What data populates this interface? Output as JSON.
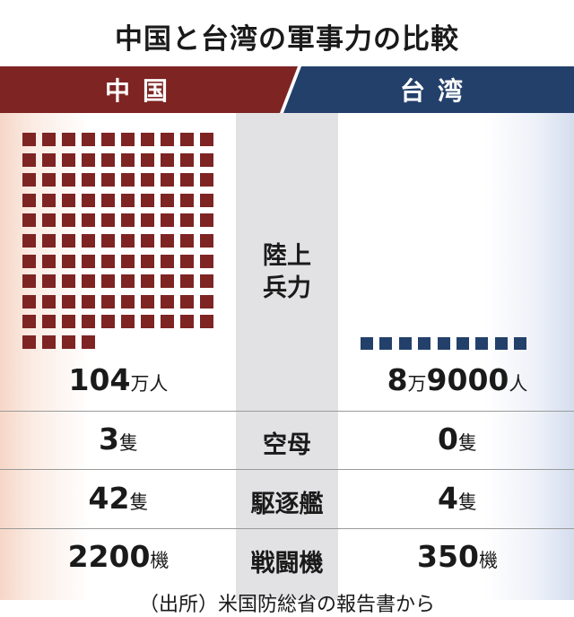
{
  "title": "中国と台湾の軍事力の比較",
  "colors": {
    "china": "#7e2423",
    "taiwan": "#23406b",
    "middle": "#e2e2e4"
  },
  "sides": {
    "china": "中国",
    "taiwan": "台湾"
  },
  "rows": {
    "ground": {
      "label": "陸上\n兵力",
      "china_num": "104",
      "china_unit": "万人",
      "taiwan_num1": "8",
      "taiwan_unit1": "万",
      "taiwan_num2": "9000",
      "taiwan_unit2": "人"
    },
    "carrier": {
      "label": "空母",
      "china_num": "3",
      "china_unit": "隻",
      "taiwan_num": "0",
      "taiwan_unit": "隻"
    },
    "destroyer": {
      "label": "駆逐艦",
      "china_num": "42",
      "china_unit": "隻",
      "taiwan_num": "4",
      "taiwan_unit": "隻"
    },
    "fighter": {
      "label": "戦闘機",
      "china_num": "2200",
      "china_unit": "機",
      "taiwan_num": "350",
      "taiwan_unit": "機"
    }
  },
  "footer": "（出所）米国防総省の報告書から",
  "chart_data": {
    "type": "table",
    "title": "中国と台湾の軍事力の比較",
    "columns": [
      "中国",
      "台湾"
    ],
    "rows": [
      {
        "category": "陸上兵力",
        "china": "104万人",
        "taiwan": "8万9000人"
      },
      {
        "category": "空母",
        "china": "3隻",
        "taiwan": "0隻"
      },
      {
        "category": "駆逐艦",
        "china": "42隻",
        "taiwan": "4隻"
      },
      {
        "category": "戦闘機",
        "china": "2200機",
        "taiwan": "350機"
      }
    ],
    "pictogram": {
      "china_squares": 104,
      "taiwan_squares": 9
    }
  }
}
